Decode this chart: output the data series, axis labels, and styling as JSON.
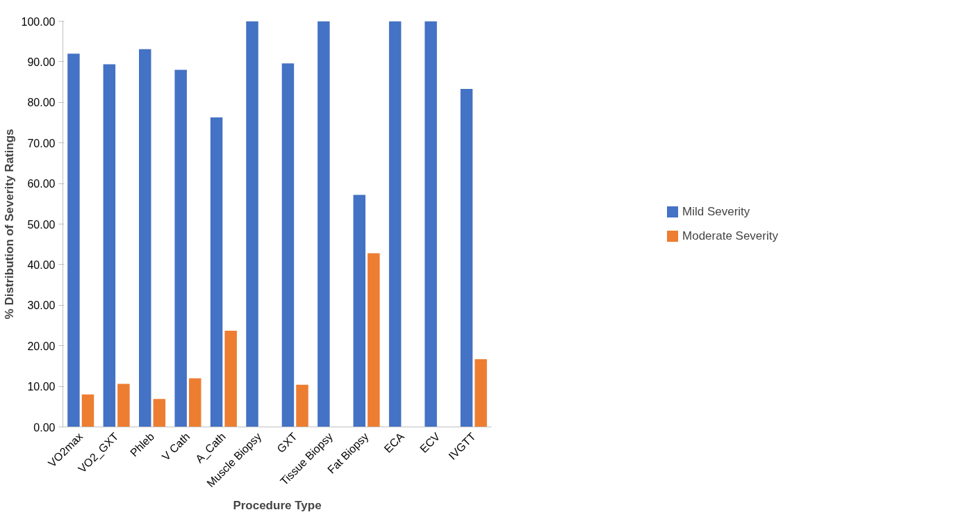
{
  "chart_data": {
    "type": "bar",
    "xlabel": "Procedure Type",
    "ylabel": "% Distribution of Severity Ratings",
    "categories": [
      "VO2max",
      "VO2_GXT",
      "Phleb",
      "V Cath",
      "A_Cath",
      "Muscle Biopsy",
      "GXT",
      "Tissue Biopsy",
      "Fat Biopsy",
      "ECA",
      "ECV",
      "IVGTT"
    ],
    "series": [
      {
        "name": "Mild Severity",
        "color": "#4472c4",
        "values": [
          92.0,
          89.4,
          93.1,
          88.0,
          76.3,
          100.0,
          89.6,
          100.0,
          57.2,
          100.0,
          100.0,
          83.3
        ]
      },
      {
        "name": "Moderate Severity",
        "color": "#ed7d31",
        "values": [
          8.0,
          10.6,
          6.9,
          12.0,
          23.7,
          0.0,
          10.4,
          0.0,
          42.8,
          0.0,
          0.0,
          16.7
        ]
      }
    ],
    "ylim": [
      0,
      100
    ],
    "yticks": [
      {
        "value": 0,
        "label": "0.00"
      },
      {
        "value": 10,
        "label": "10.00"
      },
      {
        "value": 20,
        "label": "20.00"
      },
      {
        "value": 30,
        "label": "30.00"
      },
      {
        "value": 40,
        "label": "40.00"
      },
      {
        "value": 50,
        "label": "50.00"
      },
      {
        "value": 60,
        "label": "60.00"
      },
      {
        "value": 70,
        "label": "70.00"
      },
      {
        "value": 80,
        "label": "80.00"
      },
      {
        "value": 90,
        "label": "90.00"
      },
      {
        "value": 100,
        "label": "100.00"
      }
    ],
    "grid": false,
    "legend": "right"
  }
}
